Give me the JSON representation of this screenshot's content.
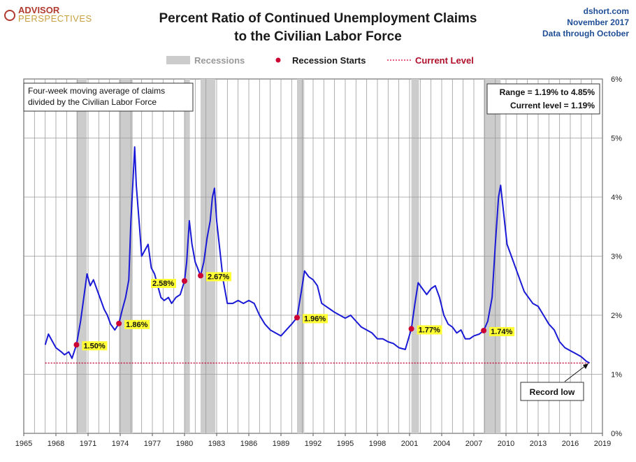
{
  "logo": {
    "line1": "ADVISOR",
    "line2": "PERSPECTIVES"
  },
  "source": {
    "site": "dshort.com",
    "date": "November 2017",
    "through": "Data through October"
  },
  "colors": {
    "series": "#1a1ad6",
    "recession": "#cccccc",
    "start_dot": "#cc0033",
    "current": "#cc0033",
    "label_bg": "#ffff33"
  },
  "chart_data": {
    "type": "line",
    "title": "Percent Ratio of Continued Unemployment Claims",
    "subtitle": "to the Civilian Labor Force",
    "legend": {
      "recessions": "Recessions",
      "starts": "Recession Starts",
      "current": "Current Level"
    },
    "note_lines": [
      "Four-week moving average of claims",
      "divided by the Civilian Labor Force"
    ],
    "range_box": [
      "Range = 1.19% to 4.85%",
      "Current level = 1.19%"
    ],
    "callout": "Record low",
    "xlim": [
      1965,
      2019
    ],
    "ylim": [
      0,
      6
    ],
    "x_ticks": [
      "1965",
      "1968",
      "1971",
      "1974",
      "1977",
      "1980",
      "1983",
      "1986",
      "1989",
      "1992",
      "1995",
      "1998",
      "2001",
      "2004",
      "2007",
      "2010",
      "2013",
      "2016",
      "2019"
    ],
    "y_ticks": [
      "0%",
      "1%",
      "2%",
      "3%",
      "4%",
      "5%",
      "6%"
    ],
    "current_level": 1.19,
    "recessions": [
      [
        1969.92,
        1970.88
      ],
      [
        1973.88,
        1975.17
      ],
      [
        1980.0,
        1980.5
      ],
      [
        1981.5,
        1982.88
      ],
      [
        1990.5,
        1991.17
      ],
      [
        2001.17,
        2001.88
      ],
      [
        2007.92,
        2009.5
      ]
    ],
    "recession_starts": [
      {
        "x": 1969.92,
        "y": 1.5,
        "label": "1.50%"
      },
      {
        "x": 1973.88,
        "y": 1.86,
        "label": "1.86%"
      },
      {
        "x": 1980.0,
        "y": 2.58,
        "label": "2.58%"
      },
      {
        "x": 1981.5,
        "y": 2.67,
        "label": "2.67%"
      },
      {
        "x": 1990.5,
        "y": 1.96,
        "label": "1.96%"
      },
      {
        "x": 2001.17,
        "y": 1.77,
        "label": "1.77%"
      },
      {
        "x": 2007.92,
        "y": 1.74,
        "label": "1.74%"
      }
    ],
    "series": [
      {
        "name": "Continued claims / Civilian Labor Force (%)",
        "points": [
          [
            1967.0,
            1.5
          ],
          [
            1967.3,
            1.68
          ],
          [
            1967.6,
            1.58
          ],
          [
            1968.0,
            1.45
          ],
          [
            1968.5,
            1.38
          ],
          [
            1968.8,
            1.33
          ],
          [
            1969.2,
            1.38
          ],
          [
            1969.5,
            1.27
          ],
          [
            1969.92,
            1.5
          ],
          [
            1970.3,
            1.9
          ],
          [
            1970.6,
            2.3
          ],
          [
            1970.9,
            2.7
          ],
          [
            1971.2,
            2.5
          ],
          [
            1971.5,
            2.6
          ],
          [
            1971.8,
            2.45
          ],
          [
            1972.1,
            2.3
          ],
          [
            1972.5,
            2.1
          ],
          [
            1972.8,
            2.0
          ],
          [
            1973.1,
            1.85
          ],
          [
            1973.5,
            1.75
          ],
          [
            1973.88,
            1.86
          ],
          [
            1974.2,
            2.1
          ],
          [
            1974.5,
            2.3
          ],
          [
            1974.8,
            2.6
          ],
          [
            1975.0,
            3.6
          ],
          [
            1975.2,
            4.3
          ],
          [
            1975.35,
            4.85
          ],
          [
            1975.5,
            4.2
          ],
          [
            1975.8,
            3.5
          ],
          [
            1976.0,
            3.0
          ],
          [
            1976.3,
            3.1
          ],
          [
            1976.6,
            3.2
          ],
          [
            1976.9,
            2.8
          ],
          [
            1977.2,
            2.7
          ],
          [
            1977.5,
            2.5
          ],
          [
            1977.8,
            2.3
          ],
          [
            1978.1,
            2.25
          ],
          [
            1978.5,
            2.3
          ],
          [
            1978.8,
            2.2
          ],
          [
            1979.2,
            2.3
          ],
          [
            1979.6,
            2.35
          ],
          [
            1980.0,
            2.58
          ],
          [
            1980.2,
            2.9
          ],
          [
            1980.45,
            3.6
          ],
          [
            1980.7,
            3.2
          ],
          [
            1981.0,
            2.9
          ],
          [
            1981.5,
            2.67
          ],
          [
            1981.8,
            2.9
          ],
          [
            1982.1,
            3.3
          ],
          [
            1982.4,
            3.6
          ],
          [
            1982.6,
            4.0
          ],
          [
            1982.8,
            4.15
          ],
          [
            1983.0,
            3.6
          ],
          [
            1983.3,
            3.1
          ],
          [
            1983.6,
            2.6
          ],
          [
            1984.0,
            2.2
          ],
          [
            1984.5,
            2.2
          ],
          [
            1985.0,
            2.25
          ],
          [
            1985.5,
            2.2
          ],
          [
            1986.0,
            2.25
          ],
          [
            1986.5,
            2.2
          ],
          [
            1987.0,
            2.0
          ],
          [
            1987.5,
            1.85
          ],
          [
            1988.0,
            1.75
          ],
          [
            1988.5,
            1.7
          ],
          [
            1989.0,
            1.65
          ],
          [
            1989.5,
            1.75
          ],
          [
            1990.0,
            1.85
          ],
          [
            1990.5,
            1.96
          ],
          [
            1990.9,
            2.4
          ],
          [
            1991.2,
            2.75
          ],
          [
            1991.6,
            2.65
          ],
          [
            1992.0,
            2.6
          ],
          [
            1992.4,
            2.5
          ],
          [
            1992.8,
            2.2
          ],
          [
            1993.2,
            2.15
          ],
          [
            1993.6,
            2.1
          ],
          [
            1994.0,
            2.05
          ],
          [
            1994.5,
            2.0
          ],
          [
            1995.0,
            1.95
          ],
          [
            1995.5,
            2.0
          ],
          [
            1996.0,
            1.9
          ],
          [
            1996.5,
            1.8
          ],
          [
            1997.0,
            1.75
          ],
          [
            1997.5,
            1.7
          ],
          [
            1998.0,
            1.6
          ],
          [
            1998.5,
            1.6
          ],
          [
            1999.0,
            1.55
          ],
          [
            1999.5,
            1.52
          ],
          [
            2000.0,
            1.45
          ],
          [
            2000.6,
            1.42
          ],
          [
            2001.17,
            1.77
          ],
          [
            2001.5,
            2.2
          ],
          [
            2001.8,
            2.55
          ],
          [
            2002.2,
            2.45
          ],
          [
            2002.6,
            2.35
          ],
          [
            2003.0,
            2.45
          ],
          [
            2003.4,
            2.5
          ],
          [
            2003.8,
            2.3
          ],
          [
            2004.2,
            2.0
          ],
          [
            2004.6,
            1.85
          ],
          [
            2005.0,
            1.8
          ],
          [
            2005.4,
            1.7
          ],
          [
            2005.8,
            1.75
          ],
          [
            2006.2,
            1.6
          ],
          [
            2006.6,
            1.6
          ],
          [
            2007.0,
            1.65
          ],
          [
            2007.5,
            1.68
          ],
          [
            2007.92,
            1.74
          ],
          [
            2008.3,
            1.9
          ],
          [
            2008.7,
            2.3
          ],
          [
            2009.0,
            3.2
          ],
          [
            2009.3,
            4.0
          ],
          [
            2009.5,
            4.2
          ],
          [
            2009.8,
            3.7
          ],
          [
            2010.1,
            3.2
          ],
          [
            2010.5,
            3.0
          ],
          [
            2010.9,
            2.8
          ],
          [
            2011.3,
            2.6
          ],
          [
            2011.7,
            2.4
          ],
          [
            2012.1,
            2.3
          ],
          [
            2012.5,
            2.2
          ],
          [
            2013.0,
            2.15
          ],
          [
            2013.5,
            2.0
          ],
          [
            2014.0,
            1.85
          ],
          [
            2014.5,
            1.75
          ],
          [
            2015.0,
            1.55
          ],
          [
            2015.5,
            1.45
          ],
          [
            2016.0,
            1.4
          ],
          [
            2016.5,
            1.35
          ],
          [
            2017.0,
            1.3
          ],
          [
            2017.5,
            1.22
          ],
          [
            2017.8,
            1.19
          ]
        ]
      }
    ]
  }
}
